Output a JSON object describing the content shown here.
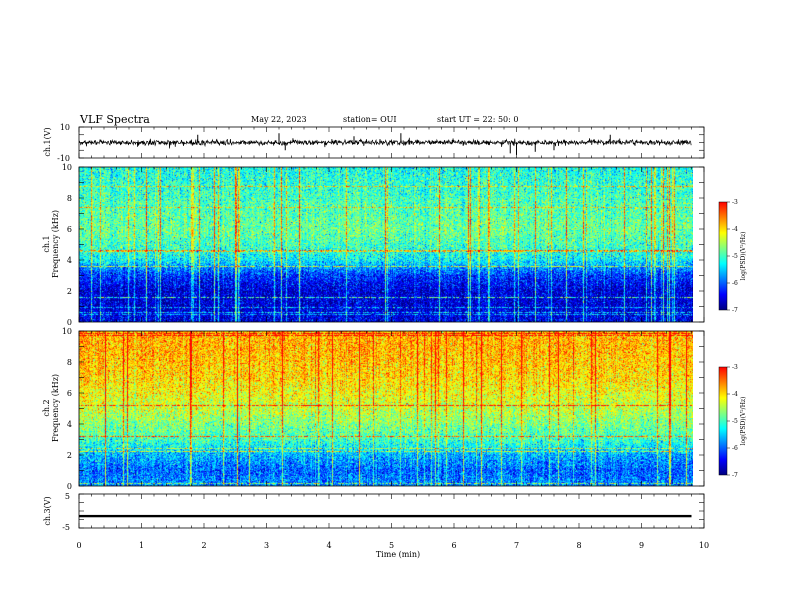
{
  "header": {
    "title": "VLF Spectra",
    "date": "May 22, 2023",
    "station": "station= OUI",
    "start": "start  UT =   22: 50: 0"
  },
  "colors": {
    "colormap": [
      "#000080",
      "#0000ff",
      "#0080ff",
      "#00ffff",
      "#80ff80",
      "#ffff00",
      "#ff8000",
      "#ff0000"
    ],
    "trace": "#000000"
  },
  "chart_data": [
    {
      "type": "line",
      "id": "ch1-waveform",
      "ylabel": "ch.1(V)",
      "xlim": [
        0,
        10
      ],
      "ylim": [
        -10,
        10
      ],
      "yticks": [
        "10",
        "-10"
      ],
      "x_end": 9.8,
      "typical_level": 0,
      "typical_amplitude": 2,
      "spikes": [
        {
          "x": 1.9,
          "y": 5
        },
        {
          "x": 3.2,
          "y": 6
        },
        {
          "x": 3.3,
          "y": -5
        },
        {
          "x": 4.4,
          "y": 4
        },
        {
          "x": 5.15,
          "y": 6
        },
        {
          "x": 6.9,
          "y": -7
        },
        {
          "x": 7.0,
          "y": -8
        },
        {
          "x": 7.3,
          "y": -6
        },
        {
          "x": 7.6,
          "y": -5
        },
        {
          "x": 8.5,
          "y": 5
        }
      ]
    },
    {
      "type": "heatmap",
      "id": "ch1-spectrogram",
      "ylabel": "ch.1\nFrequency  (kHz)",
      "xlim": [
        0,
        9.8
      ],
      "ylim": [
        0,
        10
      ],
      "yticks": [
        "0",
        "2",
        "4",
        "6",
        "8",
        "10"
      ],
      "colorbar": {
        "label": "log(PSD)(V²/Hz)",
        "range": [
          -7,
          -3
        ],
        "ticks": [
          "-3",
          "-4",
          "-5",
          "-6",
          "-7"
        ]
      },
      "frequency_profile_kHz": [
        0,
        1,
        2,
        3,
        4,
        5,
        6,
        7,
        8,
        9,
        10
      ],
      "typical_log_psd": [
        -6.5,
        -6.6,
        -6.6,
        -6.2,
        -5.3,
        -5.0,
        -4.8,
        -4.9,
        -5.0,
        -5.1,
        -5.2
      ]
    },
    {
      "type": "heatmap",
      "id": "ch2-spectrogram",
      "ylabel": "ch.2\nFrequency  (kHz)",
      "xlim": [
        0,
        9.8
      ],
      "ylim": [
        0,
        10
      ],
      "yticks": [
        "0",
        "2",
        "4",
        "6",
        "8",
        "10"
      ],
      "colorbar": {
        "label": "log(PSD)(V²/Hz)",
        "range": [
          -7,
          -3
        ],
        "ticks": [
          "-3",
          "-4",
          "-5",
          "-6",
          "-7"
        ]
      },
      "frequency_profile_kHz": [
        0,
        1,
        2,
        3,
        4,
        5,
        6,
        7,
        8,
        9,
        10
      ],
      "typical_log_psd": [
        -5.8,
        -6.0,
        -5.6,
        -5.0,
        -4.7,
        -4.4,
        -4.2,
        -4.0,
        -3.9,
        -3.8,
        -3.8
      ]
    },
    {
      "type": "line",
      "id": "ch3-waveform",
      "ylabel": "ch.3(V)",
      "xlim": [
        0,
        10
      ],
      "ylim": [
        -5,
        5
      ],
      "yticks": [
        "5",
        "-5"
      ],
      "x_end": 9.8,
      "typical_level": -1.5,
      "typical_amplitude": 0.2
    }
  ],
  "xaxis": {
    "label": "Time  (min)",
    "ticks": [
      "0",
      "1",
      "2",
      "3",
      "4",
      "5",
      "6",
      "7",
      "8",
      "9",
      "10"
    ]
  }
}
